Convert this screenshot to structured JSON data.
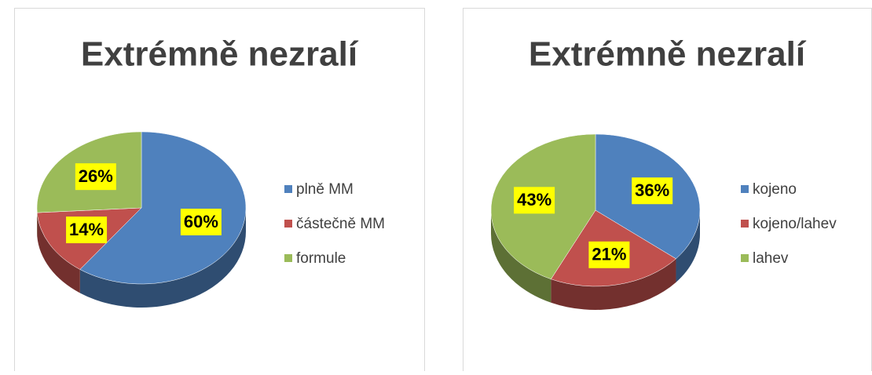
{
  "chart_data": [
    {
      "type": "pie",
      "title": "Extrémně nezralí",
      "categories": [
        "plně MM",
        "částečně MM",
        "formule"
      ],
      "values": [
        60,
        14,
        26
      ],
      "value_labels": [
        "60%",
        "14%",
        "26%"
      ],
      "colors": [
        "#4f81bd",
        "#c0504d",
        "#9bbb59"
      ],
      "legend": "right"
    },
    {
      "type": "pie",
      "title": "Extrémně nezralí",
      "categories": [
        "kojeno",
        "kojeno/lahev",
        "lahev"
      ],
      "values": [
        36,
        21,
        43
      ],
      "value_labels": [
        "36%",
        "21%",
        "43%"
      ],
      "colors": [
        "#4f81bd",
        "#c0504d",
        "#9bbb59"
      ],
      "legend": "right"
    }
  ]
}
